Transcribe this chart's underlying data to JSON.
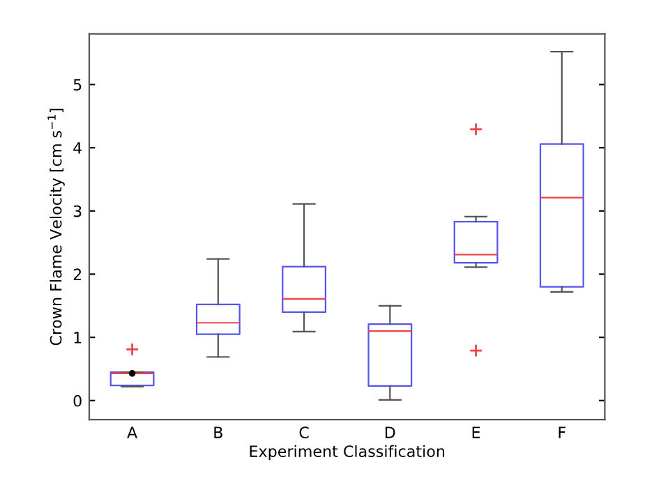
{
  "chart_data": {
    "type": "box",
    "xlabel": "Experiment Classification",
    "ylabel": "Crown Flame Velocity [cm s$^{−1}$]",
    "categories": [
      "A",
      "B",
      "C",
      "D",
      "E",
      "F"
    ],
    "color": "#5555ee",
    "boxes": [
      {
        "low": 0.22,
        "q1": 0.24,
        "median": 0.43,
        "q3": 0.45,
        "high": 0.45,
        "mean": 0.43,
        "outliers": [
          0.81
        ]
      },
      {
        "low": 0.69,
        "q1": 1.05,
        "median": 1.23,
        "q3": 1.52,
        "high": 2.24
      },
      {
        "low": 1.09,
        "q1": 1.4,
        "median": 1.61,
        "q3": 2.12,
        "high": 3.11
      },
      {
        "low": 0.01,
        "q1": 0.23,
        "median": 1.1,
        "q3": 1.21,
        "high": 1.5
      },
      {
        "low": 2.11,
        "q1": 2.18,
        "median": 2.31,
        "q3": 2.83,
        "high": 2.91,
        "outliers": [
          4.29,
          0.79
        ]
      },
      {
        "low": 1.72,
        "q1": 1.8,
        "median": 3.21,
        "q3": 4.06,
        "high": 5.52
      }
    ],
    "ylim": [
      -0.3,
      5.8
    ],
    "yticks": [
      0,
      1,
      2,
      3,
      4,
      5
    ],
    "grid": false,
    "marker": "cross"
  }
}
